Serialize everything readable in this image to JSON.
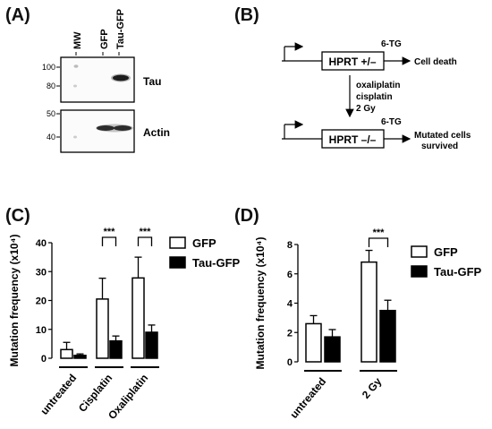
{
  "panels": {
    "A": {
      "label": "(A)",
      "lane_labels": [
        "MW",
        "GFP",
        "Tau-GFP"
      ],
      "tau_blot": {
        "marker_labels": [
          "100",
          "80"
        ],
        "protein_label": "Tau"
      },
      "actin_blot": {
        "marker_labels": [
          "50",
          "40"
        ],
        "protein_label": "Actin"
      }
    },
    "B": {
      "label": "(B)",
      "top": {
        "gene_label": "HPRT +/–",
        "drug_label": "6-TG",
        "outcome_label": "Cell death"
      },
      "treatment_lines": [
        "oxaliplatin",
        "cisplatin",
        "2 Gy"
      ],
      "bottom": {
        "gene_label": "HPRT –/–",
        "drug_label": "6-TG",
        "outcome_lines": [
          "Mutated cells",
          "survived"
        ]
      }
    },
    "C": {
      "label": "(C)"
    },
    "D": {
      "label": "(D)"
    }
  },
  "chart_data": [
    {
      "type": "bar",
      "panel": "C",
      "ylabel": "Mutation frequency (x10⁴)",
      "ylim": [
        0,
        40
      ],
      "yticks": [
        "0",
        "10",
        "20",
        "30",
        "40"
      ],
      "categories": [
        "untreated",
        "Cisplatin",
        "Oxaliplatin"
      ],
      "series": [
        {
          "name": "GFP",
          "fill": "#ffffff",
          "values": [
            3,
            20.5,
            27.8
          ],
          "errors": [
            2.5,
            7.2,
            7.2
          ]
        },
        {
          "name": "Tau-GFP",
          "fill": "#000000",
          "values": [
            1,
            6,
            9
          ],
          "errors": [
            0.5,
            1.7,
            2.5
          ]
        }
      ],
      "significance": [
        {
          "category": "Cisplatin",
          "label": "***"
        },
        {
          "category": "Oxaliplatin",
          "label": "***"
        }
      ],
      "legend_position": "top-right"
    },
    {
      "type": "bar",
      "panel": "D",
      "ylabel": "Mutation frequency (x10⁴)",
      "ylim": [
        0,
        8
      ],
      "yticks": [
        "0",
        "2",
        "4",
        "6",
        "8"
      ],
      "categories": [
        "untreated",
        "2 Gy"
      ],
      "series": [
        {
          "name": "GFP",
          "fill": "#ffffff",
          "values": [
            2.6,
            6.8
          ],
          "errors": [
            0.55,
            0.8
          ]
        },
        {
          "name": "Tau-GFP",
          "fill": "#000000",
          "values": [
            1.7,
            3.5
          ],
          "errors": [
            0.5,
            0.7
          ]
        }
      ],
      "significance": [
        {
          "category": "2 Gy",
          "label": "***"
        }
      ],
      "legend_position": "top-right"
    }
  ]
}
